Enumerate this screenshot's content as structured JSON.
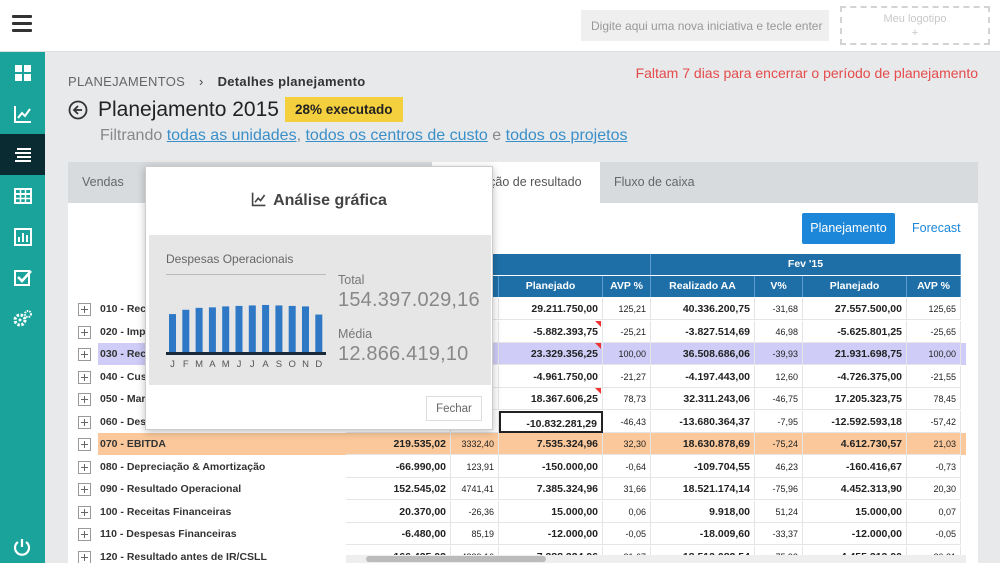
{
  "topbar": {
    "search_placeholder": "Digite aqui uma nova iniciativa e tecle enter",
    "logo_line1": "Meu logotipo",
    "logo_line2": "+"
  },
  "sidebar": {
    "items": [
      {
        "icon": "dashboard-icon"
      },
      {
        "icon": "line-chart-icon"
      },
      {
        "icon": "list-icon",
        "active": true
      },
      {
        "icon": "table-icon"
      },
      {
        "icon": "bar-chart-icon"
      },
      {
        "icon": "checkbox-icon"
      },
      {
        "icon": "settings-icon"
      }
    ],
    "power_icon": "power-icon"
  },
  "breadcrumb": {
    "root": "PLANEJAMENTOS",
    "separator": "›",
    "current": "Detalhes planejamento"
  },
  "deadline_text": "Faltam 7 dias para encerrar o período de planejamento",
  "header": {
    "title": "Planejamento 2015",
    "progress_badge": "28% executado",
    "progress_percent": 28,
    "filter_prefix": "Filtrando",
    "filter_units": "todas as unidades",
    "filter_comma": ",",
    "filter_cost": "todos os centros de custo",
    "filter_and": "e",
    "filter_projects": "todos os projetos"
  },
  "tabs": [
    {
      "label": "Vendas"
    },
    {
      "label": "ração de resultado",
      "active": true
    },
    {
      "label": "Fluxo de caixa"
    }
  ],
  "buttons": {
    "planejamento": "Planejamento",
    "forecast": "Forecast"
  },
  "table": {
    "month_headers": [
      "n '15",
      "Fev '15"
    ],
    "col_headers": [
      "Planejado",
      "AVP %",
      "Realizado AA",
      "V%",
      "Planejado",
      "AVP %"
    ],
    "rows": [
      {
        "label": "010 - Rec",
        "v": [
          "",
          "",
          "29.211.750,00",
          "125,21",
          "40.336.200,75",
          "-31,68",
          "27.557.500,00",
          "125,65"
        ]
      },
      {
        "label": "020 - Imp",
        "v": [
          "",
          "",
          "-5.882.393,75",
          "-25,21",
          "-3.827.514,69",
          "46,98",
          "-5.625.801,25",
          "-25,65"
        ],
        "mark": true
      },
      {
        "label": "030 - Rec",
        "v": [
          "",
          "",
          "23.329.356,25",
          "100,00",
          "36.508.686,06",
          "-39,93",
          "21.931.698,75",
          "100,00"
        ],
        "mark": true,
        "hl": "purple"
      },
      {
        "label": "040 - Cus",
        "v": [
          "",
          "",
          "-4.961.750,00",
          "-21,27",
          "-4.197.443,00",
          "12,60",
          "-4.726.375,00",
          "-21,55"
        ]
      },
      {
        "label": "050 - Mar",
        "v": [
          "",
          "",
          "18.367.606,25",
          "78,73",
          "32.311.243,06",
          "-46,75",
          "17.205.323,75",
          "78,45"
        ],
        "mark": true
      },
      {
        "label": "060 - Des",
        "v": [
          "",
          "",
          "-10.832.281,29",
          "-46,43",
          "-13.680.364,37",
          "-7,95",
          "-12.592.593,18",
          "-57,42"
        ],
        "boxed": true
      },
      {
        "label": "070 - EBITDA",
        "v": [
          "219.535,02",
          "3332,40",
          "7.535.324,96",
          "32,30",
          "18.630.878,69",
          "-75,24",
          "4.612.730,57",
          "21,03"
        ],
        "hl": "orange"
      },
      {
        "label": "080 - Depreciação & Amortização",
        "v": [
          "-66.990,00",
          "123,91",
          "-150.000,00",
          "-0,64",
          "-109.704,55",
          "46,23",
          "-160.416,67",
          "-0,73"
        ]
      },
      {
        "label": "090 - Resultado Operacional",
        "v": [
          "152.545,02",
          "4741,41",
          "7.385.324,96",
          "31,66",
          "18.521.174,14",
          "-75,96",
          "4.452.313,90",
          "20,30"
        ]
      },
      {
        "label": "100 - Receitas Financeiras",
        "v": [
          "20.370,00",
          "-26,36",
          "15.000,00",
          "0,06",
          "9.918,00",
          "51,24",
          "15.000,00",
          "0,07"
        ]
      },
      {
        "label": "110 - Despesas Financeiras",
        "v": [
          "-6.480,00",
          "85,19",
          "-12.000,00",
          "-0,05",
          "-18.009,60",
          "-33,37",
          "-12.000,00",
          "-0,05"
        ]
      },
      {
        "label": "120 - Resultado antes de IR/CSLL",
        "v": [
          "166.435,02",
          "4339,16",
          "7.388.324,96",
          "31,67",
          "18.513.082,54",
          "-75,93",
          "4.455.313,90",
          "20,31"
        ]
      }
    ]
  },
  "popup": {
    "title": "Análise gráfica",
    "title_icon": "line-chart-icon",
    "chart_title": "Despesas Operacionais",
    "total_label": "Total",
    "total_value": "154.397.029,16",
    "avg_label": "Média",
    "avg_value": "12.866.419,10",
    "close_label": "Fechar"
  },
  "chart_data": {
    "type": "bar",
    "categories": [
      "J",
      "F",
      "M",
      "A",
      "M",
      "J",
      "J",
      "A",
      "S",
      "O",
      "N",
      "D"
    ],
    "values": [
      0.79,
      0.88,
      0.92,
      0.93,
      0.95,
      0.96,
      0.97,
      0.98,
      0.97,
      0.96,
      0.95,
      0.78
    ],
    "bar_color": "#2f78c5"
  },
  "colors": {
    "accent": "#1aa39a",
    "primary": "#1c87d8",
    "deadline": "#e54b4b",
    "badge": "#f4d03f"
  }
}
